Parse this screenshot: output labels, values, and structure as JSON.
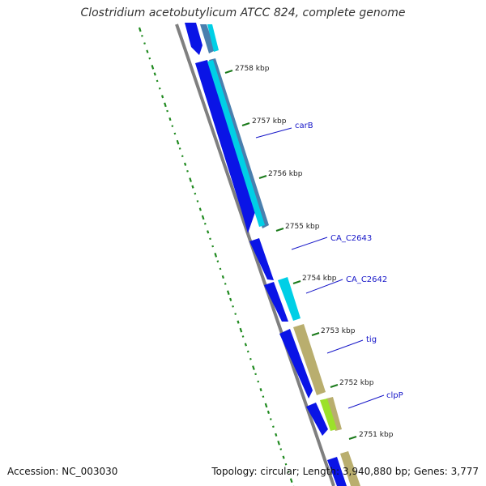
{
  "title": "Clostridium acetobutylicum ATCC 824, complete genome",
  "footer": {
    "accession": "Accession: NC_003030",
    "summary": "Topology: circular; Length: 3,940,880 bp; Genes: 3,777"
  },
  "colors": {
    "gc_ticks": "#1f8a1f",
    "backbone": "#808080",
    "cds_forward": "#0a14e6",
    "gene_cyan": "#00cfe6",
    "gene_steel": "#4a7fae",
    "gene_khaki": "#b9ae6e",
    "gene_lime": "#9ce12a",
    "scale_tick": "#1a7a1a",
    "gene_label": "#1515c8"
  },
  "scale_labels": [
    "2758 kbp",
    "2757 kbp",
    "2756 kbp",
    "2755 kbp",
    "2754 kbp",
    "2753 kbp",
    "2752 kbp",
    "2751 kbp"
  ],
  "gene_labels": [
    "carB",
    "CA_C2643",
    "CA_C2642",
    "tig",
    "clpP"
  ]
}
